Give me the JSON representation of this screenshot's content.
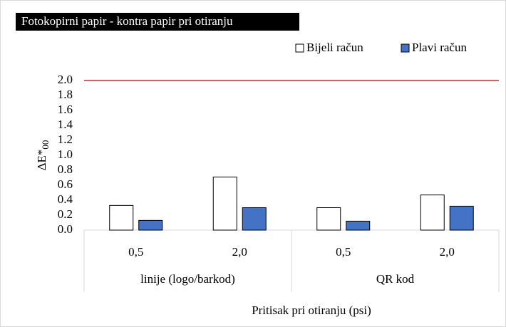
{
  "chart_data": {
    "type": "bar",
    "title": "Fotokopirni papir - kontra papir pri otiranju",
    "ylabel": "ΔE*",
    "ylabel_subscript": "00",
    "xlabel": "Pritisak pri otiranju (psi)",
    "categories": [
      "0,5",
      "2,0",
      "0,5",
      "2,0"
    ],
    "groups": [
      {
        "name": "linije (logo/barkod)",
        "size": 2
      },
      {
        "name": "QR kod",
        "size": 2
      }
    ],
    "series": [
      {
        "name": "Bijeli račun",
        "color": "#ffffff",
        "edge": "#000000",
        "values": [
          0.33,
          0.71,
          0.3,
          0.47
        ]
      },
      {
        "name": "Plavi račun",
        "color": "#4472c4",
        "edge": "#000000",
        "values": [
          0.13,
          0.3,
          0.12,
          0.32
        ]
      }
    ],
    "ylim": [
      0,
      2
    ],
    "yticks": [
      {
        "value": 0,
        "label": "0.0"
      },
      0.2,
      0.4,
      0.6,
      0.8,
      {
        "value": 1,
        "label": "1.0"
      },
      1.2,
      1.4,
      1.6,
      1.8,
      {
        "value": 2,
        "label": "2.0"
      }
    ],
    "hline": {
      "value": 2,
      "color": "#c00000"
    },
    "legend": "top-right"
  }
}
